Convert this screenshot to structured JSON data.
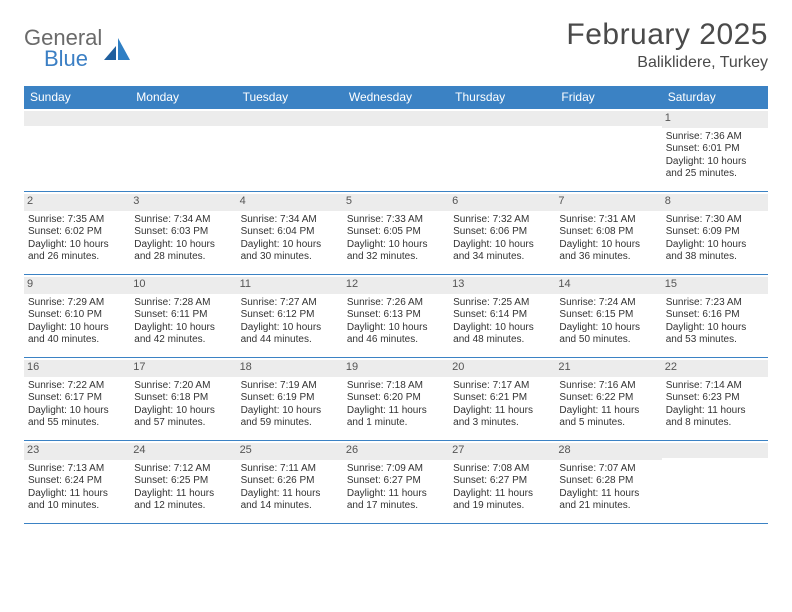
{
  "logo": {
    "word1": "General",
    "word2": "Blue"
  },
  "title": "February 2025",
  "location": "Baliklidere, Turkey",
  "colors": {
    "header_bg": "#3b82c4",
    "header_text": "#ffffff",
    "daynum_bg": "#ececec",
    "row_border": "#3b82c4",
    "body_text": "#333333",
    "logo_gray": "#6a6a6a",
    "logo_blue": "#3b7fc4"
  },
  "day_headers": [
    "Sunday",
    "Monday",
    "Tuesday",
    "Wednesday",
    "Thursday",
    "Friday",
    "Saturday"
  ],
  "weeks": [
    [
      {
        "n": "",
        "sr": "",
        "ss": "",
        "dl": ""
      },
      {
        "n": "",
        "sr": "",
        "ss": "",
        "dl": ""
      },
      {
        "n": "",
        "sr": "",
        "ss": "",
        "dl": ""
      },
      {
        "n": "",
        "sr": "",
        "ss": "",
        "dl": ""
      },
      {
        "n": "",
        "sr": "",
        "ss": "",
        "dl": ""
      },
      {
        "n": "",
        "sr": "",
        "ss": "",
        "dl": ""
      },
      {
        "n": "1",
        "sr": "Sunrise: 7:36 AM",
        "ss": "Sunset: 6:01 PM",
        "dl": "Daylight: 10 hours and 25 minutes."
      }
    ],
    [
      {
        "n": "2",
        "sr": "Sunrise: 7:35 AM",
        "ss": "Sunset: 6:02 PM",
        "dl": "Daylight: 10 hours and 26 minutes."
      },
      {
        "n": "3",
        "sr": "Sunrise: 7:34 AM",
        "ss": "Sunset: 6:03 PM",
        "dl": "Daylight: 10 hours and 28 minutes."
      },
      {
        "n": "4",
        "sr": "Sunrise: 7:34 AM",
        "ss": "Sunset: 6:04 PM",
        "dl": "Daylight: 10 hours and 30 minutes."
      },
      {
        "n": "5",
        "sr": "Sunrise: 7:33 AM",
        "ss": "Sunset: 6:05 PM",
        "dl": "Daylight: 10 hours and 32 minutes."
      },
      {
        "n": "6",
        "sr": "Sunrise: 7:32 AM",
        "ss": "Sunset: 6:06 PM",
        "dl": "Daylight: 10 hours and 34 minutes."
      },
      {
        "n": "7",
        "sr": "Sunrise: 7:31 AM",
        "ss": "Sunset: 6:08 PM",
        "dl": "Daylight: 10 hours and 36 minutes."
      },
      {
        "n": "8",
        "sr": "Sunrise: 7:30 AM",
        "ss": "Sunset: 6:09 PM",
        "dl": "Daylight: 10 hours and 38 minutes."
      }
    ],
    [
      {
        "n": "9",
        "sr": "Sunrise: 7:29 AM",
        "ss": "Sunset: 6:10 PM",
        "dl": "Daylight: 10 hours and 40 minutes."
      },
      {
        "n": "10",
        "sr": "Sunrise: 7:28 AM",
        "ss": "Sunset: 6:11 PM",
        "dl": "Daylight: 10 hours and 42 minutes."
      },
      {
        "n": "11",
        "sr": "Sunrise: 7:27 AM",
        "ss": "Sunset: 6:12 PM",
        "dl": "Daylight: 10 hours and 44 minutes."
      },
      {
        "n": "12",
        "sr": "Sunrise: 7:26 AM",
        "ss": "Sunset: 6:13 PM",
        "dl": "Daylight: 10 hours and 46 minutes."
      },
      {
        "n": "13",
        "sr": "Sunrise: 7:25 AM",
        "ss": "Sunset: 6:14 PM",
        "dl": "Daylight: 10 hours and 48 minutes."
      },
      {
        "n": "14",
        "sr": "Sunrise: 7:24 AM",
        "ss": "Sunset: 6:15 PM",
        "dl": "Daylight: 10 hours and 50 minutes."
      },
      {
        "n": "15",
        "sr": "Sunrise: 7:23 AM",
        "ss": "Sunset: 6:16 PM",
        "dl": "Daylight: 10 hours and 53 minutes."
      }
    ],
    [
      {
        "n": "16",
        "sr": "Sunrise: 7:22 AM",
        "ss": "Sunset: 6:17 PM",
        "dl": "Daylight: 10 hours and 55 minutes."
      },
      {
        "n": "17",
        "sr": "Sunrise: 7:20 AM",
        "ss": "Sunset: 6:18 PM",
        "dl": "Daylight: 10 hours and 57 minutes."
      },
      {
        "n": "18",
        "sr": "Sunrise: 7:19 AM",
        "ss": "Sunset: 6:19 PM",
        "dl": "Daylight: 10 hours and 59 minutes."
      },
      {
        "n": "19",
        "sr": "Sunrise: 7:18 AM",
        "ss": "Sunset: 6:20 PM",
        "dl": "Daylight: 11 hours and 1 minute."
      },
      {
        "n": "20",
        "sr": "Sunrise: 7:17 AM",
        "ss": "Sunset: 6:21 PM",
        "dl": "Daylight: 11 hours and 3 minutes."
      },
      {
        "n": "21",
        "sr": "Sunrise: 7:16 AM",
        "ss": "Sunset: 6:22 PM",
        "dl": "Daylight: 11 hours and 5 minutes."
      },
      {
        "n": "22",
        "sr": "Sunrise: 7:14 AM",
        "ss": "Sunset: 6:23 PM",
        "dl": "Daylight: 11 hours and 8 minutes."
      }
    ],
    [
      {
        "n": "23",
        "sr": "Sunrise: 7:13 AM",
        "ss": "Sunset: 6:24 PM",
        "dl": "Daylight: 11 hours and 10 minutes."
      },
      {
        "n": "24",
        "sr": "Sunrise: 7:12 AM",
        "ss": "Sunset: 6:25 PM",
        "dl": "Daylight: 11 hours and 12 minutes."
      },
      {
        "n": "25",
        "sr": "Sunrise: 7:11 AM",
        "ss": "Sunset: 6:26 PM",
        "dl": "Daylight: 11 hours and 14 minutes."
      },
      {
        "n": "26",
        "sr": "Sunrise: 7:09 AM",
        "ss": "Sunset: 6:27 PM",
        "dl": "Daylight: 11 hours and 17 minutes."
      },
      {
        "n": "27",
        "sr": "Sunrise: 7:08 AM",
        "ss": "Sunset: 6:27 PM",
        "dl": "Daylight: 11 hours and 19 minutes."
      },
      {
        "n": "28",
        "sr": "Sunrise: 7:07 AM",
        "ss": "Sunset: 6:28 PM",
        "dl": "Daylight: 11 hours and 21 minutes."
      },
      {
        "n": "",
        "sr": "",
        "ss": "",
        "dl": ""
      }
    ]
  ]
}
